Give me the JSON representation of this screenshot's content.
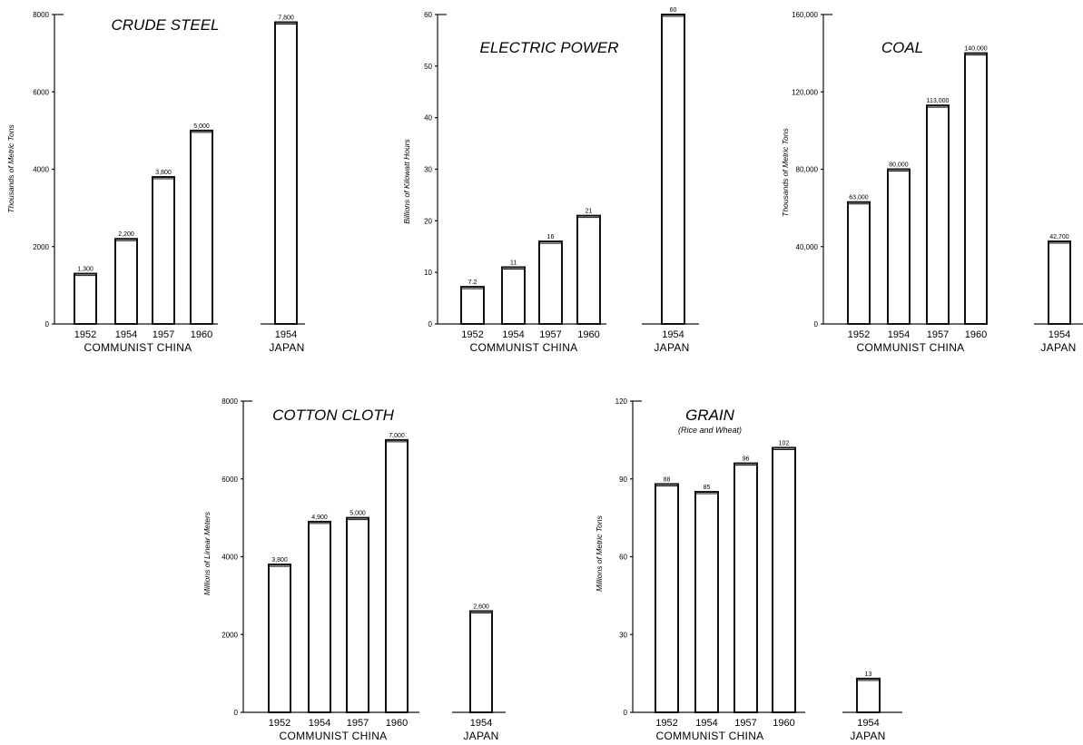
{
  "colors": {
    "ink": "#111111",
    "bar_fill": "#ffffff",
    "background": "#ffffff"
  },
  "chart_data": [
    {
      "type": "bar",
      "title": "CRUDE STEEL",
      "subtitle": "",
      "ylabel": "Thousands of Metric Tons",
      "ylim": [
        0,
        8000
      ],
      "yticks": [
        "0",
        "2000",
        "4000",
        "6000",
        "8000"
      ],
      "groups": [
        {
          "name": "COMMUNIST CHINA",
          "categories": [
            "1952",
            "1954",
            "1957",
            "1960"
          ],
          "values": [
            1300,
            2200,
            3800,
            5000
          ],
          "labels": [
            "1,300",
            "2,200",
            "3,800",
            "5,000"
          ]
        },
        {
          "name": "JAPAN",
          "categories": [
            "1954"
          ],
          "values": [
            7800
          ],
          "labels": [
            "7,800"
          ]
        }
      ]
    },
    {
      "type": "bar",
      "title": "ELECTRIC POWER",
      "subtitle": "",
      "ylabel": "Billions of Kilowatt Hours",
      "ylim": [
        0,
        60
      ],
      "yticks": [
        "0",
        "10",
        "20",
        "30",
        "40",
        "50",
        "60"
      ],
      "groups": [
        {
          "name": "COMMUNIST CHINA",
          "categories": [
            "1952",
            "1954",
            "1957",
            "1960"
          ],
          "values": [
            7.2,
            11,
            16,
            21
          ],
          "labels": [
            "7.2",
            "11",
            "16",
            "21"
          ]
        },
        {
          "name": "JAPAN",
          "categories": [
            "1954"
          ],
          "values": [
            60
          ],
          "labels": [
            "60"
          ]
        }
      ]
    },
    {
      "type": "bar",
      "title": "COAL",
      "subtitle": "",
      "ylabel": "Thousands of Metric Tons",
      "ylim": [
        0,
        160000
      ],
      "yticks": [
        "0",
        "40,000",
        "80,000",
        "120,000",
        "160,000"
      ],
      "groups": [
        {
          "name": "COMMUNIST CHINA",
          "categories": [
            "1952",
            "1954",
            "1957",
            "1960"
          ],
          "values": [
            63000,
            80000,
            113000,
            140000
          ],
          "labels": [
            "63,000",
            "80,000",
            "113,000",
            "140,000"
          ]
        },
        {
          "name": "JAPAN",
          "categories": [
            "1954"
          ],
          "values": [
            42700
          ],
          "labels": [
            "42,700"
          ]
        }
      ]
    },
    {
      "type": "bar",
      "title": "COTTON CLOTH",
      "subtitle": "",
      "ylabel": "Millions of Linear Meters",
      "ylim": [
        0,
        8000
      ],
      "yticks": [
        "0",
        "2000",
        "4000",
        "6000",
        "8000"
      ],
      "groups": [
        {
          "name": "COMMUNIST CHINA",
          "categories": [
            "1952",
            "1954",
            "1957",
            "1960"
          ],
          "values": [
            3800,
            4900,
            5000,
            7000
          ],
          "labels": [
            "3,800",
            "4,900",
            "5,000",
            "7,000"
          ]
        },
        {
          "name": "JAPAN",
          "categories": [
            "1954"
          ],
          "values": [
            2600
          ],
          "labels": [
            "2,600"
          ]
        }
      ]
    },
    {
      "type": "bar",
      "title": "GRAIN",
      "subtitle": "(Rice and Wheat)",
      "ylabel": "Millions of Metric Tons",
      "ylim": [
        0,
        120
      ],
      "yticks": [
        "0",
        "30",
        "60",
        "90",
        "120"
      ],
      "groups": [
        {
          "name": "COMMUNIST CHINA",
          "categories": [
            "1952",
            "1954",
            "1957",
            "1960"
          ],
          "values": [
            88,
            85,
            96,
            102
          ],
          "labels": [
            "88",
            "85",
            "96",
            "102"
          ]
        },
        {
          "name": "JAPAN",
          "categories": [
            "1954"
          ],
          "values": [
            13
          ],
          "labels": [
            "13"
          ]
        }
      ]
    }
  ]
}
